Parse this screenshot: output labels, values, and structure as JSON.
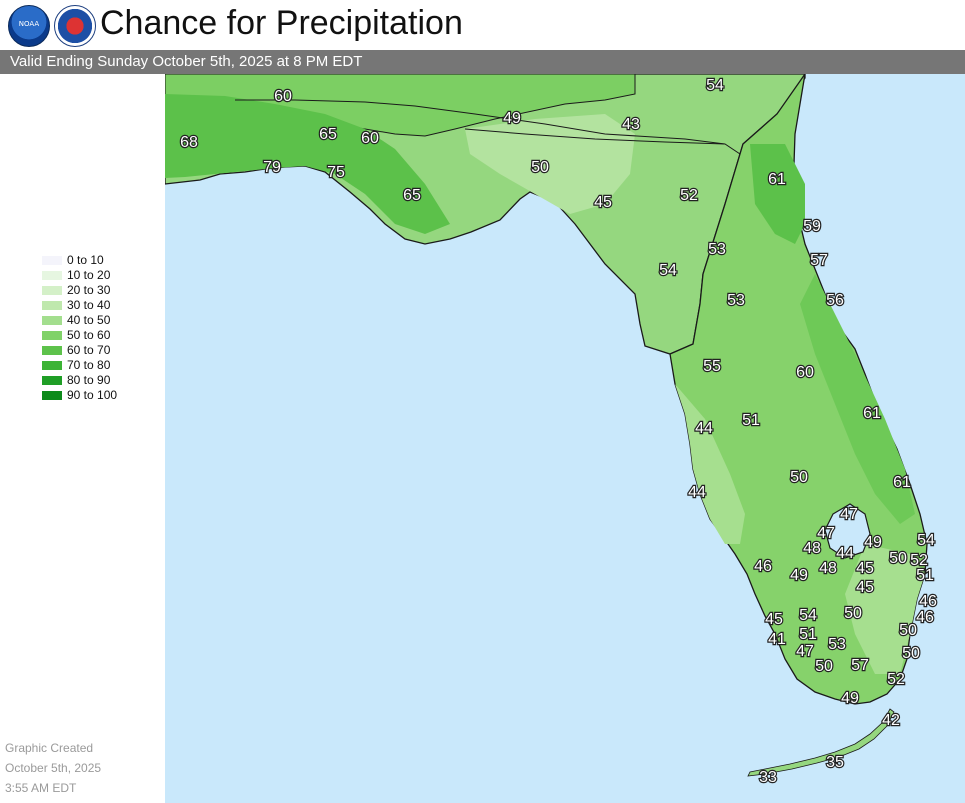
{
  "header": {
    "title": "Chance for Precipitation",
    "noaa_logo_text": "NOAA",
    "subtitle": "Valid Ending Sunday October 5th, 2025 at 8 PM EDT"
  },
  "legend": {
    "items": [
      {
        "label": "0 to 10",
        "color": "#f4f4fb"
      },
      {
        "label": "10 to 20",
        "color": "#e6f6e1"
      },
      {
        "label": "20 to 30",
        "color": "#d4f0c8"
      },
      {
        "label": "30 to 40",
        "color": "#bfe8ad"
      },
      {
        "label": "40 to 50",
        "color": "#a3de8e"
      },
      {
        "label": "50 to 60",
        "color": "#80d268"
      },
      {
        "label": "60 to 70",
        "color": "#5dc24b"
      },
      {
        "label": "70 to 80",
        "color": "#3cb335"
      },
      {
        "label": "80 to 90",
        "color": "#1f9e26"
      },
      {
        "label": "90 to 100",
        "color": "#0c8a1a"
      }
    ]
  },
  "graphic_created": {
    "line1": "Graphic Created",
    "line2": "October 5th, 2025",
    "line3": "3:55 AM EDT"
  },
  "map": {
    "water_color": "#c9e8fb",
    "point_labels": [
      {
        "value": "54",
        "area": "South Georgia east"
      },
      {
        "value": "60",
        "area": "Southeast Alabama"
      },
      {
        "value": "49",
        "area": "Southwest Georgia"
      },
      {
        "value": "43",
        "area": "South Georgia"
      },
      {
        "value": "68",
        "area": "Mobile"
      },
      {
        "value": "65",
        "area": "Alabama border"
      },
      {
        "value": "60",
        "area": "Alabama border east"
      },
      {
        "value": "79",
        "area": "Pensacola"
      },
      {
        "value": "75",
        "area": "Destin"
      },
      {
        "value": "50",
        "area": "Tallahassee"
      },
      {
        "value": "61",
        "area": "Jacksonville"
      },
      {
        "value": "65",
        "area": "Panama City"
      },
      {
        "value": "45",
        "area": "Big Bend"
      },
      {
        "value": "52",
        "area": "Lake City"
      },
      {
        "value": "59",
        "area": "St. Augustine"
      },
      {
        "value": "53",
        "area": "Gainesville"
      },
      {
        "value": "57",
        "area": "Palm Coast"
      },
      {
        "value": "54",
        "area": "Cedar Key"
      },
      {
        "value": "53",
        "area": "Ocala"
      },
      {
        "value": "56",
        "area": "Daytona Beach"
      },
      {
        "value": "55",
        "area": "Brooksville"
      },
      {
        "value": "60",
        "area": "Orlando"
      },
      {
        "value": "61",
        "area": "Titusville"
      },
      {
        "value": "51",
        "area": "Lakeland"
      },
      {
        "value": "44",
        "area": "Tampa"
      },
      {
        "value": "50",
        "area": "Avon Park"
      },
      {
        "value": "61",
        "area": "Vero Beach"
      },
      {
        "value": "44",
        "area": "Sarasota"
      },
      {
        "value": "47",
        "area": "Okeechobee north"
      },
      {
        "value": "47",
        "area": "Clewiston north"
      },
      {
        "value": "54",
        "area": "Jupiter"
      },
      {
        "value": "48",
        "area": "LaBelle"
      },
      {
        "value": "44",
        "area": "Lake Okeechobee south"
      },
      {
        "value": "49",
        "area": "Belle Glade east"
      },
      {
        "value": "50",
        "area": "West Palm Beach"
      },
      {
        "value": "52",
        "area": "Palm Beach"
      },
      {
        "value": "46",
        "area": "Fort Myers"
      },
      {
        "value": "49",
        "area": "Immokalee"
      },
      {
        "value": "48",
        "area": "Everglades north"
      },
      {
        "value": "45",
        "area": "Everglades central"
      },
      {
        "value": "51",
        "area": "Boca Raton"
      },
      {
        "value": "45",
        "area": "Everglades south"
      },
      {
        "value": "46",
        "area": "Fort Lauderdale north"
      },
      {
        "value": "54",
        "area": "Naples east"
      },
      {
        "value": "50",
        "area": "Everglades west"
      },
      {
        "value": "46",
        "area": "Fort Lauderdale"
      },
      {
        "value": "45",
        "area": "Naples"
      },
      {
        "value": "51",
        "area": "Naples southeast"
      },
      {
        "value": "50",
        "area": "Hollywood"
      },
      {
        "value": "41",
        "area": "Marco Island"
      },
      {
        "value": "53",
        "area": "Everglades City east"
      },
      {
        "value": "47",
        "area": "Everglades City"
      },
      {
        "value": "50",
        "area": "Miami"
      },
      {
        "value": "50",
        "area": "Chokoloskee"
      },
      {
        "value": "57",
        "area": "Homestead"
      },
      {
        "value": "52",
        "area": "Key Largo north"
      },
      {
        "value": "49",
        "area": "Flamingo"
      },
      {
        "value": "42",
        "area": "Key Largo"
      },
      {
        "value": "35",
        "area": "Marathon"
      },
      {
        "value": "33",
        "area": "Key West"
      }
    ]
  }
}
